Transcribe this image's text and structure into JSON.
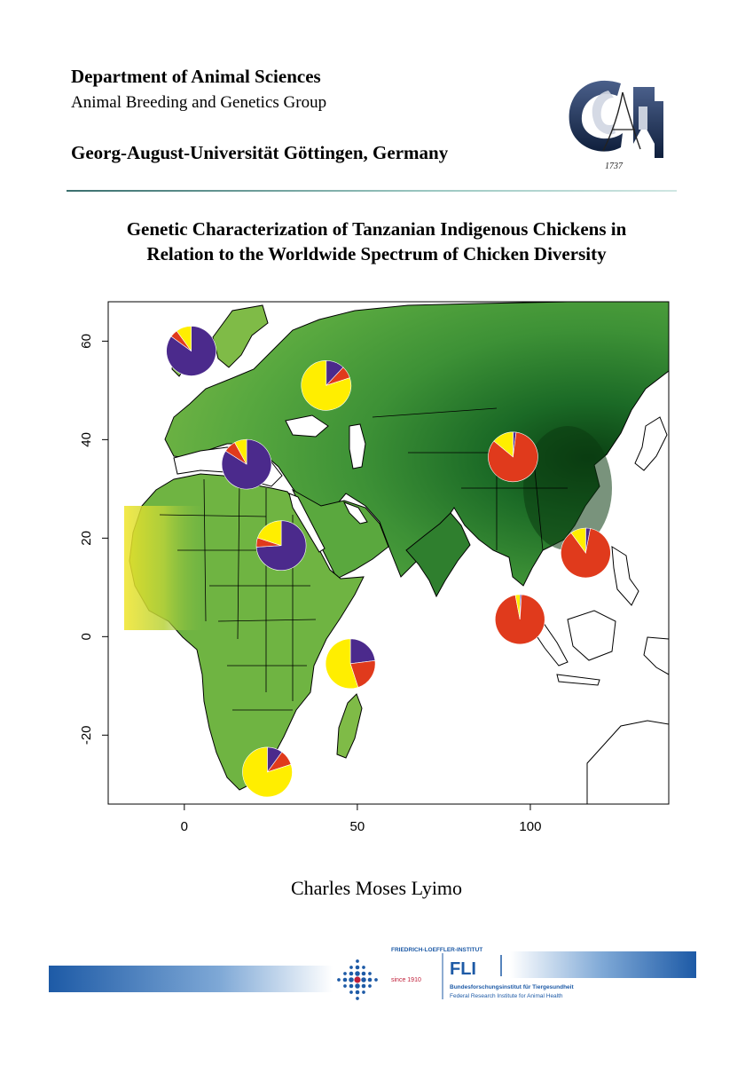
{
  "header": {
    "department": "Department of Animal Sciences",
    "group": "Animal Breeding and Genetics Group",
    "university": "Georg-August-Universität Göttingen, Germany",
    "seal_year": "1737"
  },
  "title_lines": [
    "Genetic Characterization of Tanzanian Indigenous Chickens in",
    "Relation to the Worldwide Spectrum of Chicken Diversity"
  ],
  "author": "Charles Moses Lyimo",
  "colors": {
    "purple": "#4b2a8c",
    "red": "#e03a1c",
    "yellow": "#ffee00",
    "brand_blue": "#1d5aa6"
  },
  "chart_data": {
    "type": "map",
    "xlim": [
      -22,
      140
    ],
    "ylim": [
      -34,
      68
    ],
    "x_ticks": [
      "0",
      "50",
      "100"
    ],
    "x_tick_values": [
      0,
      50,
      100
    ],
    "y_ticks": [
      "60",
      "40",
      "20",
      "0",
      "-20"
    ],
    "y_tick_values": [
      60,
      40,
      20,
      0,
      -20
    ],
    "pies": [
      {
        "lon": 2,
        "lat": 58,
        "yellow": 0.1,
        "red": 0.05,
        "purple": 0.85
      },
      {
        "lon": 41,
        "lat": 51,
        "yellow": 0.8,
        "red": 0.08,
        "purple": 0.12
      },
      {
        "lon": 18,
        "lat": 35,
        "yellow": 0.08,
        "red": 0.08,
        "purple": 0.84
      },
      {
        "lon": 28,
        "lat": 18.5,
        "yellow": 0.2,
        "red": 0.06,
        "purple": 0.74
      },
      {
        "lon": 95,
        "lat": 36.5,
        "yellow": 0.14,
        "red": 0.84,
        "purple": 0.02
      },
      {
        "lon": 116,
        "lat": 17,
        "yellow": 0.1,
        "red": 0.87,
        "purple": 0.03
      },
      {
        "lon": 97,
        "lat": 3.5,
        "yellow": 0.03,
        "red": 0.96,
        "purple": 0.01
      },
      {
        "lon": 48,
        "lat": -5.5,
        "yellow": 0.55,
        "red": 0.22,
        "purple": 0.23
      },
      {
        "lon": 24,
        "lat": -27.5,
        "yellow": 0.8,
        "red": 0.1,
        "purple": 0.1
      }
    ]
  },
  "footer": {
    "institute_top": "FRIEDRICH-LOEFFLER-INSTITUT",
    "since": "since 1910",
    "abbr": "FLI",
    "name_de": "Bundesforschungsinstitut für Tiergesundheit",
    "name_en": "Federal Research Institute for Animal Health"
  }
}
